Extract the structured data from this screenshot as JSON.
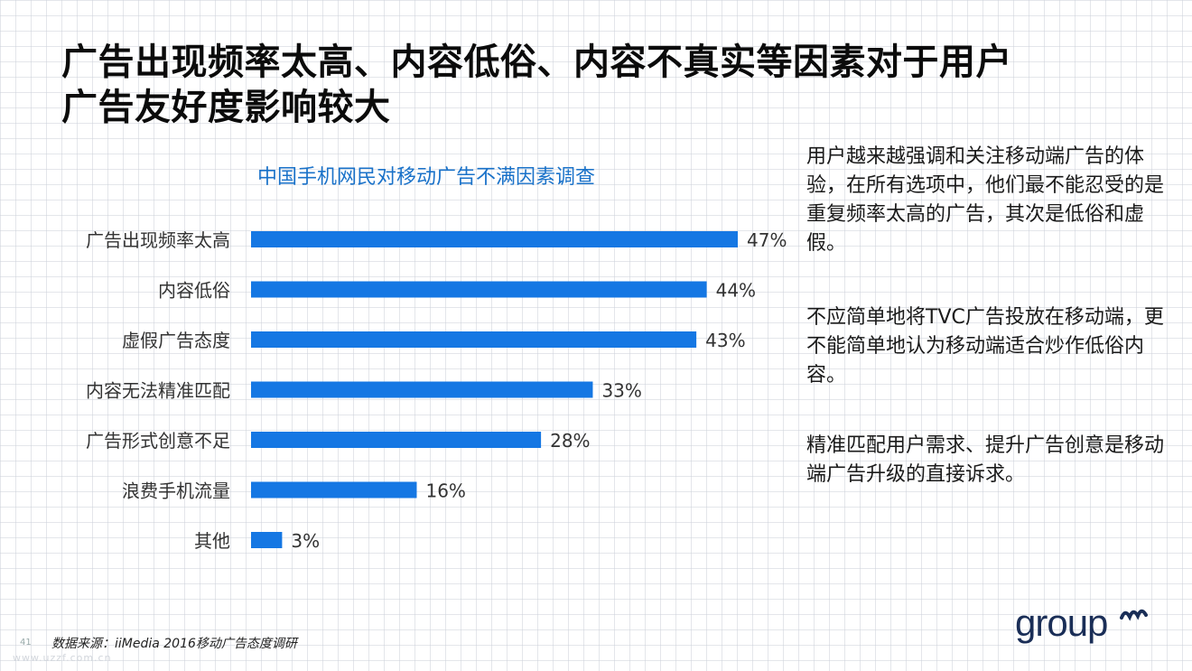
{
  "slide": {
    "title_lines": [
      "广告出现频率太高、内容低俗、内容不真实等因素对于用户",
      "广告友好度影响较大"
    ],
    "page_number": "41",
    "source": "数据来源：iiMedia 2016移动广告态度调研",
    "watermark": "www.uzzf.com.cn",
    "logo_text": "groupm"
  },
  "bullets": [
    "用户越来越强调和关注移动端广告的体验，在所有选项中，他们最不能忍受的是重复频率太高的广告，其次是低俗和虚假。",
    "不应简单地将TVC广告投放在移动端，更不能简单地认为移动端适合炒作低俗内容。",
    "精准匹配用户需求、提升广告创意是移动端广告升级的直接诉求。"
  ],
  "colors": {
    "bar": "#1577e3",
    "chart_title": "#1a72c9",
    "title": "#0b0b0b",
    "logo": "#1a2e57"
  },
  "chart_data": {
    "type": "bar",
    "orientation": "horizontal",
    "title": "中国手机网民对移动广告不满因素调查",
    "categories": [
      "广告出现频率太高",
      "内容低俗",
      "虚假广告态度",
      "内容无法精准匹配",
      "广告形式创意不足",
      "浪费手机流量",
      "其他"
    ],
    "values": [
      47,
      44,
      43,
      33,
      28,
      16,
      3
    ],
    "value_labels": [
      "47%",
      "44%",
      "43%",
      "33%",
      "28%",
      "16%",
      "3%"
    ],
    "unit": "%",
    "xlim": [
      0,
      47
    ],
    "grid": false,
    "legend": "none"
  }
}
